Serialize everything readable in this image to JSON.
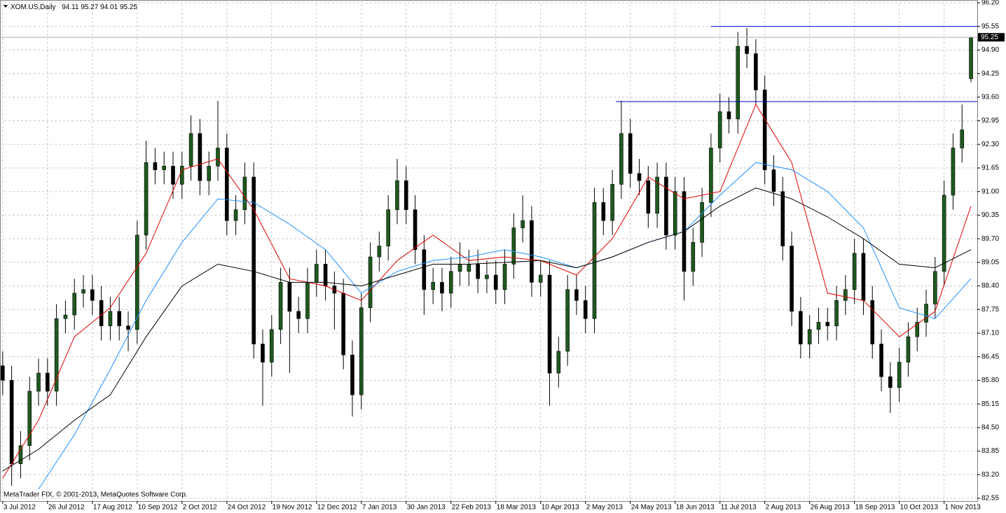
{
  "chart_data": {
    "type": "candlestick",
    "title": "XOM.US,Daily",
    "footer": "MetaTrader FIX, © 2001-2013, MetaQuotes Software Corp.",
    "xlim": [
      -0.3,
      108.7
    ],
    "xticks": [
      {
        "value": 0,
        "label": "3 Jul 2012"
      },
      {
        "value": 5,
        "label": "26 Jul 2012"
      },
      {
        "value": 10,
        "label": "17 Aug 2012"
      },
      {
        "value": 15,
        "label": "10 Sep 2012"
      },
      {
        "value": 20,
        "label": "2 Oct 2012"
      },
      {
        "value": 25,
        "label": "24 Oct 2012"
      },
      {
        "value": 30,
        "label": "19 Nov 2012"
      },
      {
        "value": 35,
        "label": "12 Dec 2012"
      },
      {
        "value": 40,
        "label": "7 Jan 2013"
      },
      {
        "value": 45,
        "label": "30 Jan 2013"
      },
      {
        "value": 50,
        "label": "22 Feb 2013"
      },
      {
        "value": 55,
        "label": "18 Mar 2013"
      },
      {
        "value": 60,
        "label": "10 Apr 2013"
      },
      {
        "value": 65,
        "label": "2 May 2013"
      },
      {
        "value": 70,
        "label": "24 May 2013"
      },
      {
        "value": 75,
        "label": "18 Jun 2013"
      },
      {
        "value": 80,
        "label": "11 Jul 2013"
      },
      {
        "value": 85,
        "label": "2 Aug 2013"
      },
      {
        "value": 90,
        "label": "26 Aug 2013"
      },
      {
        "value": 95,
        "label": "18 Sep 2013"
      },
      {
        "value": 100,
        "label": "10 Oct 2013"
      },
      {
        "value": 105,
        "label": "1 Nov 2013"
      }
    ],
    "ylim": [
      82.55,
      96.2
    ],
    "yticks": [
      {
        "value": 82.55,
        "label": "82.55"
      },
      {
        "value": 83.2,
        "label": "83.20"
      },
      {
        "value": 83.85,
        "label": "83.85"
      },
      {
        "value": 84.5,
        "label": "84.50"
      },
      {
        "value": 85.15,
        "label": "85.15"
      },
      {
        "value": 85.8,
        "label": "85.80"
      },
      {
        "value": 86.45,
        "label": "86.45"
      },
      {
        "value": 87.1,
        "label": "87.10"
      },
      {
        "value": 87.75,
        "label": "87.75"
      },
      {
        "value": 88.4,
        "label": "88.40"
      },
      {
        "value": 89.05,
        "label": "89.05"
      },
      {
        "value": 89.7,
        "label": "89.70"
      },
      {
        "value": 90.35,
        "label": "90.35"
      },
      {
        "value": 91,
        "label": "91.00"
      },
      {
        "value": 91.65,
        "label": "91.65"
      },
      {
        "value": 92.3,
        "label": "92.30"
      },
      {
        "value": 92.95,
        "label": "92.95"
      },
      {
        "value": 93.6,
        "label": "93.60"
      },
      {
        "value": 94.25,
        "label": "94.25"
      },
      {
        "value": 94.9,
        "label": "94.90"
      },
      {
        "value": 95.55,
        "label": "95.55"
      },
      {
        "value": 96.2,
        "label": "96.20"
      }
    ],
    "grid": true,
    "up_color": "#1e5a1e",
    "down_color": "#000000",
    "candles": {
      "open": [
        86.2,
        85.8,
        83.5,
        84.0,
        85.5,
        86.0,
        85.5,
        87.5,
        87.6,
        88.2,
        88.3,
        88.0,
        87.3,
        87.7,
        87.3,
        87.2,
        89.8,
        91.8,
        91.6,
        91.7,
        91.2,
        91.7,
        92.6,
        91.3,
        91.7,
        92.2,
        90.2,
        90.5,
        91.4,
        86.8,
        86.3,
        87.2,
        88.5,
        87.7,
        87.5,
        88.5,
        89.0,
        88.4,
        88.2,
        86.5,
        85.4,
        87.8,
        89.2,
        89.5,
        90.5,
        91.3,
        90.5,
        89.4,
        88.3,
        88.5,
        88.2,
        88.8,
        88.8,
        89.0,
        88.6,
        88.7,
        88.3,
        89.0,
        90.0,
        90.2,
        88.5,
        88.7,
        86.0,
        86.6,
        88.3,
        88.0,
        87.5,
        90.7,
        90.2,
        91.2,
        92.6,
        91.5,
        91.3,
        90.4,
        91.4,
        89.8,
        91.0,
        88.8,
        89.6,
        90.7,
        92.2,
        93.2,
        93.0,
        95.0,
        94.8,
        93.8,
        91.6,
        91.0,
        89.5,
        87.7,
        86.8,
        87.2,
        87.4,
        87.3,
        88.0,
        88.3,
        89.3,
        88.0,
        86.8,
        85.9,
        85.6,
        86.3,
        87.0,
        87.4,
        87.9,
        88.8,
        90.9,
        92.2,
        94.11
      ],
      "high": [
        86.6,
        86.2,
        84.4,
        85.9,
        86.4,
        86.4,
        87.9,
        88.0,
        88.6,
        88.7,
        88.7,
        88.4,
        88.1,
        88.1,
        87.7,
        90.2,
        92.4,
        92.2,
        92.1,
        92.1,
        92.1,
        93.1,
        93.0,
        92.1,
        93.5,
        92.6,
        90.9,
        91.8,
        91.8,
        87.2,
        87.6,
        88.9,
        88.9,
        88.1,
        88.9,
        89.4,
        89.4,
        88.8,
        88.6,
        86.9,
        88.2,
        89.6,
        89.9,
        90.9,
        91.9,
        91.7,
        90.9,
        89.8,
        88.9,
        88.9,
        89.2,
        89.6,
        89.4,
        89.4,
        89.1,
        89.1,
        89.4,
        90.4,
        90.9,
        90.6,
        89.1,
        89.1,
        87.0,
        88.7,
        88.7,
        88.4,
        91.1,
        91.1,
        91.6,
        93.5,
        93.0,
        91.9,
        91.7,
        91.8,
        91.8,
        91.4,
        91.4,
        90.0,
        91.1,
        92.6,
        93.7,
        93.6,
        95.4,
        95.5,
        95.2,
        94.2,
        92.0,
        91.4,
        89.9,
        88.1,
        87.6,
        87.8,
        87.8,
        88.4,
        88.7,
        89.7,
        89.7,
        88.4,
        87.2,
        86.3,
        86.7,
        87.4,
        87.8,
        88.3,
        89.2,
        91.3,
        92.6,
        93.4,
        95.27
      ],
      "low": [
        85.4,
        82.9,
        83.1,
        83.6,
        85.1,
        85.1,
        85.1,
        87.1,
        87.2,
        87.8,
        87.6,
        86.9,
        86.9,
        86.9,
        86.6,
        86.8,
        89.4,
        91.2,
        91.2,
        90.8,
        90.8,
        91.3,
        90.9,
        90.9,
        91.3,
        89.8,
        89.8,
        90.1,
        86.4,
        85.1,
        85.9,
        86.8,
        86.0,
        87.1,
        87.1,
        88.1,
        88.0,
        87.2,
        86.1,
        84.8,
        85.0,
        87.4,
        88.8,
        89.1,
        90.1,
        90.1,
        89.0,
        87.6,
        87.9,
        87.7,
        87.8,
        88.4,
        88.4,
        88.2,
        88.2,
        87.9,
        87.9,
        88.6,
        89.6,
        88.1,
        88.1,
        85.1,
        85.6,
        86.2,
        87.6,
        87.1,
        87.1,
        89.8,
        89.8,
        90.8,
        91.1,
        90.9,
        90.0,
        90.0,
        89.4,
        89.4,
        88.0,
        88.4,
        89.2,
        90.3,
        91.8,
        92.6,
        92.6,
        94.4,
        93.4,
        91.2,
        90.6,
        89.1,
        87.3,
        86.4,
        86.4,
        86.8,
        86.9,
        86.9,
        87.6,
        87.9,
        87.6,
        86.4,
        85.5,
        84.9,
        85.2,
        85.9,
        86.6,
        87.0,
        87.5,
        88.4,
        90.5,
        91.8,
        94.01
      ],
      "close": [
        85.8,
        83.5,
        84.0,
        85.5,
        86.0,
        85.5,
        87.5,
        87.6,
        88.2,
        88.3,
        88.0,
        87.3,
        87.7,
        87.3,
        87.2,
        89.8,
        91.8,
        91.6,
        91.7,
        91.2,
        91.7,
        92.6,
        91.3,
        91.7,
        92.2,
        90.2,
        90.5,
        91.4,
        86.8,
        86.3,
        87.2,
        88.5,
        87.7,
        87.5,
        88.5,
        89.0,
        88.4,
        88.2,
        86.5,
        85.4,
        87.8,
        89.2,
        89.5,
        90.5,
        91.3,
        90.5,
        89.4,
        88.3,
        88.5,
        88.2,
        88.8,
        89.0,
        89.0,
        88.6,
        88.7,
        88.3,
        89.0,
        90.0,
        90.2,
        88.5,
        88.7,
        86.0,
        86.6,
        88.3,
        88.0,
        87.5,
        90.7,
        90.2,
        91.2,
        92.6,
        91.5,
        91.3,
        90.4,
        91.4,
        89.8,
        91.0,
        88.8,
        89.6,
        90.7,
        92.2,
        93.2,
        93.0,
        95.0,
        94.8,
        93.8,
        91.6,
        91.0,
        89.5,
        87.7,
        86.8,
        87.2,
        87.4,
        87.3,
        88.0,
        88.3,
        89.3,
        88.0,
        86.8,
        85.9,
        85.6,
        86.3,
        87.0,
        87.4,
        87.9,
        88.8,
        90.9,
        92.2,
        92.7,
        95.25
      ]
    },
    "line_x": [
      0,
      4,
      8,
      12,
      16,
      20,
      24,
      28,
      32,
      36,
      40,
      44,
      48,
      52,
      56,
      60,
      64,
      68,
      72,
      76,
      80,
      84,
      88,
      92,
      96,
      100,
      104,
      108
    ],
    "series": [
      {
        "color": "#e00000",
        "values": [
          83.1,
          84.7,
          87.0,
          87.8,
          89.3,
          91.6,
          91.9,
          90.5,
          88.6,
          88.4,
          88.0,
          89.1,
          89.8,
          89.1,
          89.2,
          89.1,
          88.7,
          89.7,
          91.4,
          90.8,
          91.0,
          93.4,
          91.8,
          88.2,
          88.0,
          87.0,
          87.7,
          90.6
        ]
      },
      {
        "color": "#1e90ff",
        "values": [
          null,
          82.8,
          84.3,
          86.1,
          88.0,
          89.6,
          90.8,
          90.7,
          90.1,
          89.4,
          88.2,
          88.8,
          89.1,
          89.2,
          89.4,
          89.2,
          88.9,
          89.2,
          89.6,
          89.9,
          90.9,
          91.8,
          91.6,
          91.0,
          90.0,
          87.8,
          87.5,
          88.6
        ]
      },
      {
        "color": "#000000",
        "values": [
          83.3,
          83.9,
          84.7,
          85.4,
          87.0,
          88.4,
          89.0,
          88.8,
          88.5,
          88.5,
          88.4,
          88.7,
          89.0,
          89.0,
          89.05,
          89.1,
          88.9,
          89.2,
          89.6,
          89.9,
          90.6,
          91.1,
          90.8,
          90.3,
          89.7,
          89.0,
          88.9,
          89.4
        ]
      }
    ],
    "hlines": [
      {
        "value": 95.55,
        "start": 79,
        "color": "#0000cc"
      },
      {
        "value": 93.48,
        "start": 68.4,
        "color": "#0000cc"
      }
    ],
    "last_price_color": "#000000"
  }
}
